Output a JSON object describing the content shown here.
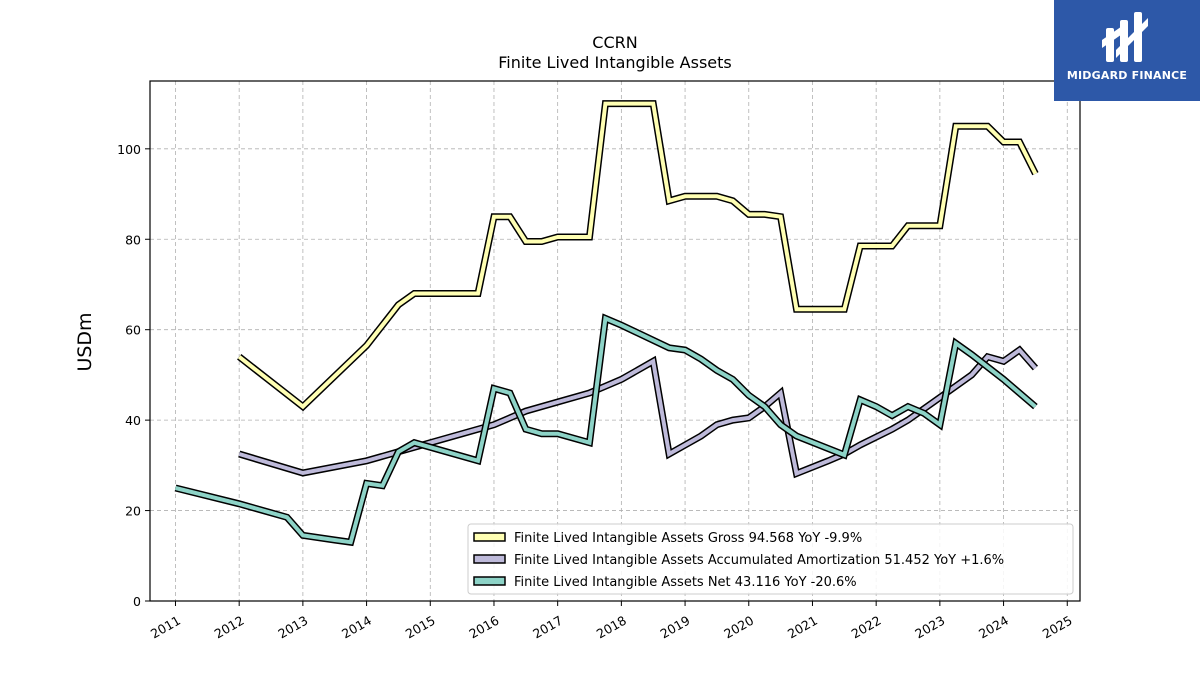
{
  "brand": {
    "name": "MIDGARD FINANCE",
    "bg_color": "#2d58a8"
  },
  "chart_data": {
    "type": "line",
    "title": "CCRN",
    "subtitle": "Finite Lived Intangible Assets",
    "ylabel": "USDm",
    "xlabel": "",
    "ylim": [
      0,
      115
    ],
    "xlim": [
      2010.6,
      2025.2
    ],
    "yticks": [
      0,
      20,
      40,
      60,
      80,
      100
    ],
    "xticks": [
      2011,
      2012,
      2013,
      2014,
      2015,
      2016,
      2017,
      2018,
      2019,
      2020,
      2021,
      2022,
      2023,
      2024,
      2025
    ],
    "grid": true,
    "legend_position": "lower-right",
    "series": [
      {
        "name": "Finite Lived Intangible Assets Gross",
        "legend_label": "Finite Lived Intangible Assets Gross  94.568 YoY -9.9%",
        "color": "#ffffb3",
        "points": [
          [
            2012.0,
            54
          ],
          [
            2013.0,
            43
          ],
          [
            2014.0,
            56.5
          ],
          [
            2014.5,
            65.5
          ],
          [
            2014.75,
            68
          ],
          [
            2015.75,
            68
          ],
          [
            2016.0,
            85
          ],
          [
            2016.25,
            85
          ],
          [
            2016.5,
            79.5
          ],
          [
            2016.75,
            79.5
          ],
          [
            2017.0,
            80.5
          ],
          [
            2017.5,
            80.5
          ],
          [
            2017.75,
            110
          ],
          [
            2018.5,
            110
          ],
          [
            2018.75,
            88.5
          ],
          [
            2019.0,
            89.5
          ],
          [
            2019.5,
            89.5
          ],
          [
            2019.75,
            88.5
          ],
          [
            2020.0,
            85.5
          ],
          [
            2020.25,
            85.5
          ],
          [
            2020.5,
            85
          ],
          [
            2020.75,
            64.5
          ],
          [
            2021.5,
            64.5
          ],
          [
            2021.75,
            78.5
          ],
          [
            2022.25,
            78.5
          ],
          [
            2022.5,
            83
          ],
          [
            2022.75,
            83
          ],
          [
            2023.0,
            83
          ],
          [
            2023.25,
            105
          ],
          [
            2023.75,
            105
          ],
          [
            2024.0,
            101.5
          ],
          [
            2024.25,
            101.5
          ],
          [
            2024.5,
            94.5
          ]
        ]
      },
      {
        "name": "Finite Lived Intangible Assets Accumulated Amortization",
        "legend_label": "Finite Lived Intangible Assets Accumulated Amortization  51.452 YoY +1.6%",
        "color": "#bebada",
        "points": [
          [
            2012.0,
            32.5
          ],
          [
            2013.0,
            28.3
          ],
          [
            2014.0,
            31
          ],
          [
            2014.5,
            33
          ],
          [
            2015.0,
            35
          ],
          [
            2015.5,
            37
          ],
          [
            2016.0,
            39
          ],
          [
            2016.5,
            42
          ],
          [
            2017.0,
            44
          ],
          [
            2017.5,
            46
          ],
          [
            2018.0,
            49
          ],
          [
            2018.5,
            53
          ],
          [
            2018.75,
            32.5
          ],
          [
            2019.0,
            34.5
          ],
          [
            2019.25,
            36.5
          ],
          [
            2019.5,
            39
          ],
          [
            2019.75,
            40
          ],
          [
            2020.0,
            40.5
          ],
          [
            2020.25,
            43
          ],
          [
            2020.5,
            46
          ],
          [
            2020.75,
            28.2
          ],
          [
            2021.25,
            31
          ],
          [
            2021.5,
            32.5
          ],
          [
            2021.75,
            34.5
          ],
          [
            2022.25,
            38
          ],
          [
            2022.5,
            40
          ],
          [
            2023.0,
            45
          ],
          [
            2023.5,
            50
          ],
          [
            2023.75,
            54
          ],
          [
            2024.0,
            53
          ],
          [
            2024.25,
            55.5
          ],
          [
            2024.5,
            51.5
          ]
        ]
      },
      {
        "name": "Finite Lived Intangible Assets Net",
        "legend_label": "Finite Lived Intangible Assets Net  43.116 YoY -20.6%",
        "color": "#8dd3c7",
        "points": [
          [
            2011.0,
            25
          ],
          [
            2012.0,
            21.5
          ],
          [
            2012.75,
            18.5
          ],
          [
            2013.0,
            14.5
          ],
          [
            2013.5,
            13.5
          ],
          [
            2013.75,
            13
          ],
          [
            2014.0,
            26
          ],
          [
            2014.25,
            25.5
          ],
          [
            2014.5,
            33
          ],
          [
            2014.75,
            35
          ],
          [
            2015.75,
            31
          ],
          [
            2016.0,
            47
          ],
          [
            2016.25,
            46
          ],
          [
            2016.5,
            38
          ],
          [
            2016.75,
            37
          ],
          [
            2017.0,
            37
          ],
          [
            2017.5,
            35
          ],
          [
            2017.75,
            62.5
          ],
          [
            2018.0,
            61
          ],
          [
            2018.75,
            56
          ],
          [
            2019.0,
            55.5
          ],
          [
            2019.25,
            53.5
          ],
          [
            2019.5,
            51
          ],
          [
            2019.75,
            49
          ],
          [
            2020.0,
            45.5
          ],
          [
            2020.25,
            43
          ],
          [
            2020.5,
            39
          ],
          [
            2020.75,
            36.5
          ],
          [
            2021.5,
            32.3
          ],
          [
            2021.75,
            44.5
          ],
          [
            2022.0,
            43
          ],
          [
            2022.25,
            41
          ],
          [
            2022.5,
            43
          ],
          [
            2022.75,
            41.5
          ],
          [
            2023.0,
            39
          ],
          [
            2023.25,
            57
          ],
          [
            2023.5,
            54.5
          ],
          [
            2024.0,
            49
          ],
          [
            2024.5,
            43
          ]
        ]
      }
    ]
  }
}
